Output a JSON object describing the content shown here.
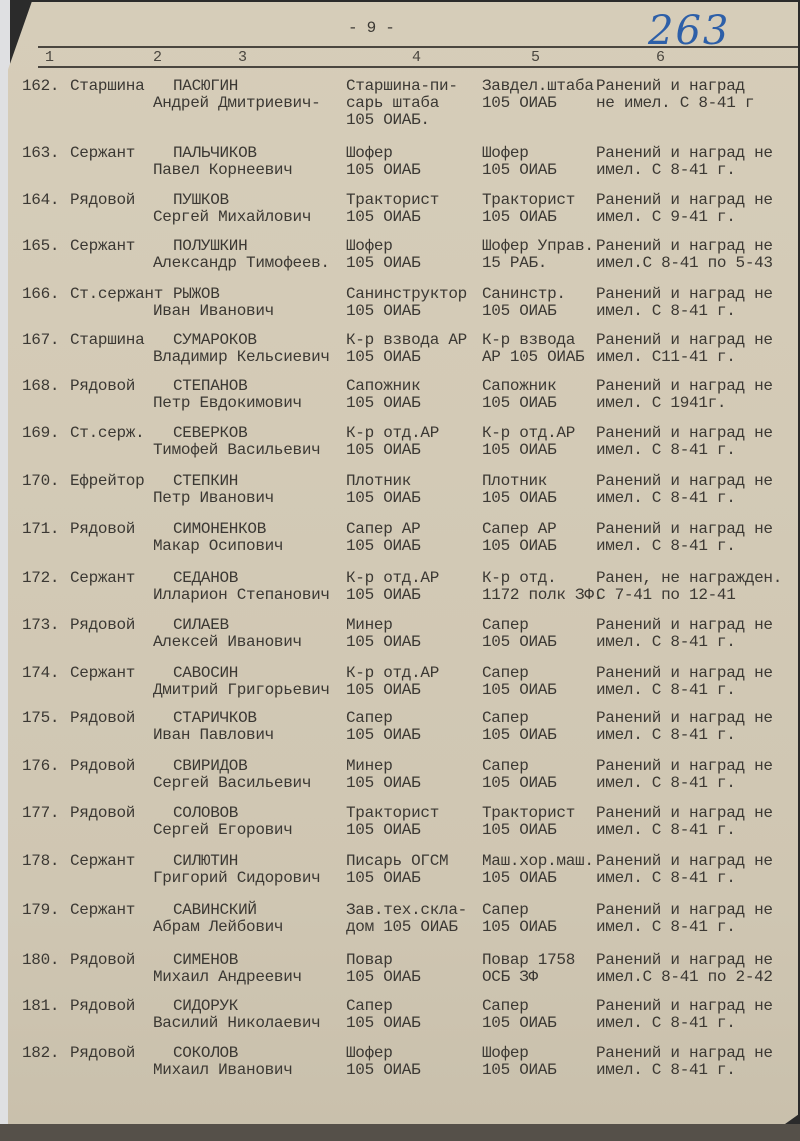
{
  "page": {
    "page_number": "- 9 -",
    "archive_number": "263",
    "column_numbers": [
      "1",
      "2",
      "3",
      "4",
      "5",
      "6"
    ]
  },
  "rows": [
    {
      "num": "162.",
      "rank": "Старшина",
      "surname": "ПАСЮГИН",
      "name": "Андрей Дмитриевич-",
      "col4": [
        "Старшина-пи-",
        "сарь штаба",
        "105 ОИАБ."
      ],
      "col5": [
        "Завдел.штаба",
        "105 ОИАБ"
      ],
      "col6": [
        "Ранений и наград",
        "не имел. С 8-41 г"
      ]
    },
    {
      "num": "163.",
      "rank": "Сержант",
      "surname": "ПАЛЬЧИКОВ",
      "name": "Павел Корнеевич",
      "col4": [
        "Шофер",
        "105 ОИАБ"
      ],
      "col5": [
        "Шофер",
        "105 ОИАБ"
      ],
      "col6": [
        "Ранений и наград не",
        "имел. С 8-41 г."
      ]
    },
    {
      "num": "164.",
      "rank": "Рядовой",
      "surname": "ПУШКОВ",
      "name": "Сергей Михайлович",
      "col4": [
        "Тракторист",
        "105 ОИАБ"
      ],
      "col5": [
        "Тракторист",
        "105 ОИАБ"
      ],
      "col6": [
        "Ранений и наград не",
        "имел. С 9-41 г."
      ]
    },
    {
      "num": "165.",
      "rank": "Сержант",
      "surname": "ПОЛУШКИН",
      "name": "Александр Тимофеев.",
      "col4": [
        "Шофер",
        "105 ОИАБ"
      ],
      "col5": [
        "Шофер Управ.",
        "15 РАБ."
      ],
      "col6": [
        "Ранений и наград не",
        "имел.С 8-41 по 5-43"
      ]
    },
    {
      "num": "166.",
      "rank": "Ст.сержант",
      "surname": "РЫЖОВ",
      "name": "Иван Иванович",
      "col4": [
        "Санинструктор",
        "105 ОИАБ"
      ],
      "col5": [
        "Санинстр.",
        "105 ОИАБ"
      ],
      "col6": [
        "Ранений и наград не",
        "имел. С 8-41 г."
      ]
    },
    {
      "num": "167.",
      "rank": "Старшина",
      "surname": "СУМАРОКОВ",
      "name": "Владимир Кельсиевич",
      "col4": [
        "К-р взвода АР",
        "105 ОИАБ"
      ],
      "col5": [
        "К-р взвода",
        "АР 105 ОИАБ"
      ],
      "col6": [
        "Ранений и наград не",
        "имел. С11-41 г."
      ]
    },
    {
      "num": "168.",
      "rank": "Рядовой",
      "surname": "СТЕПАНОВ",
      "name": "Петр Евдокимович",
      "col4": [
        "Сапожник",
        "105 ОИАБ"
      ],
      "col5": [
        "Сапожник",
        "105 ОИАБ"
      ],
      "col6": [
        "Ранений и наград не",
        "имел. С 1941г."
      ]
    },
    {
      "num": "169.",
      "rank": "Ст.серж.",
      "surname": "СЕВЕРКОВ",
      "name": "Тимофей Васильевич",
      "col4": [
        "К-р отд.АР",
        "105 ОИАБ"
      ],
      "col5": [
        "К-р отд.АР",
        "105 ОИАБ"
      ],
      "col6": [
        "Ранений и наград не",
        "имел. С 8-41 г."
      ]
    },
    {
      "num": "170.",
      "rank": "Ефрейтор",
      "surname": "СТЕПКИН",
      "name": "Петр Иванович",
      "col4": [
        "Плотник",
        "105 ОИАБ"
      ],
      "col5": [
        "Плотник",
        "105 ОИАБ"
      ],
      "col6": [
        "Ранений и наград не",
        "имел. С 8-41 г."
      ]
    },
    {
      "num": "171.",
      "rank": "Рядовой",
      "surname": "СИМОНЕНКОВ",
      "name": "Макар Осипович",
      "col4": [
        "Сапер АР",
        "105 ОИАБ"
      ],
      "col5": [
        "Сапер АР",
        "105 ОИАБ"
      ],
      "col6": [
        "Ранений и наград не",
        "имел. С 8-41 г."
      ]
    },
    {
      "num": "172.",
      "rank": "Сержант",
      "surname": "СЕДАНОВ",
      "name": "Илларион Степанович",
      "col4": [
        "К-р отд.АР",
        "105 ОИАБ"
      ],
      "col5": [
        "К-р отд.",
        "1172 полк ЗФ."
      ],
      "col6": [
        "Ранен, не награжден.",
        "С 7-41 по 12-41"
      ]
    },
    {
      "num": "173.",
      "rank": "Рядовой",
      "surname": "СИЛАЕВ",
      "name": "Алексей Иванович",
      "col4": [
        "Минер",
        "105 ОИАБ"
      ],
      "col5": [
        "Сапер",
        "105 ОИАБ"
      ],
      "col6": [
        "Ранений и наград не",
        "имел. С 8-41 г."
      ]
    },
    {
      "num": "174.",
      "rank": "Сержант",
      "surname": "САВОСИН",
      "name": "Дмитрий Григорьевич",
      "col4": [
        "К-р отд.АР",
        "105 ОИАБ"
      ],
      "col5": [
        "Сапер",
        "105 ОИАБ"
      ],
      "col6": [
        "Ранений и наград не",
        "имел. С 8-41 г."
      ]
    },
    {
      "num": "175.",
      "rank": "Рядовой",
      "surname": "СТАРИЧКОВ",
      "name": "Иван Павлович",
      "col4": [
        "Сапер",
        "105 ОИАБ"
      ],
      "col5": [
        "Сапер",
        "105 ОИАБ"
      ],
      "col6": [
        "Ранений и наград не",
        "имел. С 8-41 г."
      ]
    },
    {
      "num": "176.",
      "rank": "Рядовой",
      "surname": "СВИРИДОВ",
      "name": "Сергей Васильевич",
      "col4": [
        "Минер",
        "105 ОИАБ"
      ],
      "col5": [
        "Сапер",
        "105 ОИАБ"
      ],
      "col6": [
        "Ранений и наград не",
        "имел. С 8-41 г."
      ]
    },
    {
      "num": "177.",
      "rank": "Рядовой",
      "surname": "СОЛОВОВ",
      "name": "Сергей Егорович",
      "col4": [
        "Тракторист",
        "105 ОИАБ"
      ],
      "col5": [
        "Тракторист",
        "105 ОИАБ"
      ],
      "col6": [
        "Ранений и наград не",
        "имел. С 8-41 г."
      ]
    },
    {
      "num": "178.",
      "rank": "Сержант",
      "surname": "СИЛЮТИН",
      "name": "Григорий Сидорович",
      "col4": [
        "Писарь ОГСМ",
        "105 ОИАБ"
      ],
      "col5": [
        "Маш.хор.маш.",
        "105 ОИАБ"
      ],
      "col6": [
        "Ранений и наград не",
        "имел. С 8-41 г."
      ]
    },
    {
      "num": "179.",
      "rank": "Сержант",
      "surname": "САВИНСКИЙ",
      "name": "Абрам Лейбович",
      "col4": [
        "Зав.тех.скла-",
        "дом 105 ОИАБ"
      ],
      "col5": [
        "Сапер",
        "105 ОИАБ"
      ],
      "col6": [
        "Ранений и наград не",
        "имел. С 8-41 г."
      ]
    },
    {
      "num": "180.",
      "rank": "Рядовой",
      "surname": "СИМЕНОВ",
      "name": "Михаил Андреевич",
      "col4": [
        "Повар",
        "105 ОИАБ"
      ],
      "col5": [
        "Повар 1758",
        "ОСБ ЗФ"
      ],
      "col6": [
        "Ранений и наград не",
        "имел.С 8-41 по 2-42"
      ]
    },
    {
      "num": "181.",
      "rank": "Рядовой",
      "surname": "СИДОРУК",
      "name": "Василий Николаевич",
      "col4": [
        "Сапер",
        "105 ОИАБ"
      ],
      "col5": [
        "Сапер",
        "105 ОИАБ"
      ],
      "col6": [
        "Ранений и наград не",
        "имел. С 8-41 г."
      ]
    },
    {
      "num": "182.",
      "rank": "Рядовой",
      "surname": "СОКОЛОВ",
      "name": "Михаил Иванович",
      "col4": [
        "Шофер",
        "105 ОИАБ"
      ],
      "col5": [
        "Шофер",
        "105 ОИАБ"
      ],
      "col6": [
        "Ранений и наград не",
        "имел. С 8-41 г."
      ]
    }
  ],
  "colors": {
    "paper": "#d3cab6",
    "ink": "#3b3833",
    "handwriting": "#2d5fa8"
  }
}
